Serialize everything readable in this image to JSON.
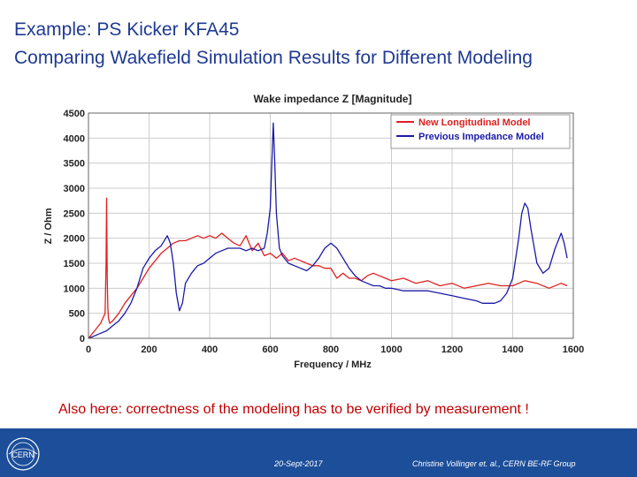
{
  "slide": {
    "title_line1": "Example: PS Kicker KFA45",
    "title_line2": "Comparing Wakefield Simulation Results for Different Modeling",
    "note": "Also here: correctness of the modeling has to be verified by measurement !",
    "footer_date": "20-Sept-2017",
    "footer_author": "Christine Vollinger et. al., CERN BE-RF Group",
    "logo_text": "CERN"
  },
  "chart_data": {
    "type": "line",
    "title": "Wake impedance Z [Magnitude]",
    "xlabel": "Frequency / MHz",
    "ylabel": "Z / Ohm",
    "xlim": [
      0,
      1600
    ],
    "ylim": [
      0,
      4500
    ],
    "xticks": [
      0,
      200,
      400,
      600,
      800,
      1000,
      1200,
      1400,
      1600
    ],
    "yticks": [
      0,
      500,
      1000,
      1500,
      2000,
      2500,
      3000,
      3500,
      4000,
      4500
    ],
    "grid": true,
    "legend_position": "top-right",
    "series": [
      {
        "name": "New Longitudinal Model",
        "color": "#e02020",
        "x": [
          0,
          20,
          40,
          55,
          58,
          60,
          62,
          64,
          66,
          70,
          80,
          100,
          120,
          140,
          160,
          180,
          200,
          220,
          240,
          260,
          280,
          300,
          320,
          340,
          360,
          380,
          400,
          420,
          440,
          460,
          480,
          500,
          520,
          540,
          560,
          580,
          600,
          620,
          640,
          660,
          680,
          700,
          720,
          740,
          760,
          780,
          800,
          820,
          840,
          860,
          880,
          900,
          920,
          940,
          960,
          980,
          1000,
          1040,
          1080,
          1120,
          1160,
          1200,
          1240,
          1280,
          1320,
          1360,
          1400,
          1440,
          1480,
          1520,
          1560,
          1580
        ],
        "y": [
          0,
          150,
          300,
          500,
          1500,
          2800,
          1200,
          600,
          400,
          300,
          350,
          500,
          700,
          850,
          1000,
          1200,
          1400,
          1550,
          1700,
          1800,
          1900,
          1950,
          1950,
          2000,
          2050,
          2000,
          2050,
          2000,
          2100,
          2000,
          1900,
          1850,
          2050,
          1750,
          1900,
          1650,
          1700,
          1600,
          1700,
          1550,
          1600,
          1550,
          1500,
          1450,
          1450,
          1400,
          1400,
          1200,
          1300,
          1200,
          1200,
          1150,
          1250,
          1300,
          1250,
          1200,
          1150,
          1200,
          1100,
          1150,
          1050,
          1100,
          1000,
          1050,
          1100,
          1050,
          1050,
          1150,
          1100,
          1000,
          1100,
          1050
        ]
      },
      {
        "name": "Previous Impedance Model",
        "color": "#1a1aa8",
        "x": [
          0,
          20,
          40,
          60,
          80,
          100,
          120,
          140,
          160,
          180,
          200,
          220,
          240,
          260,
          270,
          280,
          290,
          300,
          310,
          320,
          340,
          360,
          380,
          400,
          420,
          440,
          460,
          480,
          500,
          520,
          540,
          560,
          580,
          590,
          600,
          605,
          610,
          615,
          620,
          630,
          640,
          660,
          680,
          700,
          720,
          740,
          760,
          780,
          800,
          820,
          840,
          860,
          880,
          900,
          920,
          940,
          960,
          980,
          1000,
          1040,
          1080,
          1120,
          1160,
          1200,
          1240,
          1280,
          1300,
          1320,
          1340,
          1360,
          1380,
          1400,
          1420,
          1430,
          1440,
          1450,
          1460,
          1480,
          1500,
          1520,
          1540,
          1560,
          1570,
          1580
        ],
        "y": [
          0,
          50,
          100,
          150,
          250,
          350,
          500,
          700,
          1000,
          1400,
          1600,
          1750,
          1850,
          2050,
          1900,
          1500,
          900,
          550,
          700,
          1100,
          1300,
          1450,
          1500,
          1600,
          1700,
          1750,
          1800,
          1800,
          1800,
          1750,
          1800,
          1750,
          1800,
          2100,
          2600,
          3500,
          4300,
          3500,
          2500,
          1800,
          1650,
          1500,
          1450,
          1400,
          1350,
          1450,
          1600,
          1800,
          1900,
          1800,
          1600,
          1400,
          1250,
          1150,
          1100,
          1050,
          1050,
          1000,
          1000,
          950,
          950,
          950,
          900,
          850,
          800,
          750,
          700,
          700,
          700,
          750,
          900,
          1200,
          2000,
          2500,
          2700,
          2600,
          2200,
          1500,
          1300,
          1400,
          1800,
          2100,
          1900,
          1600
        ]
      }
    ]
  }
}
